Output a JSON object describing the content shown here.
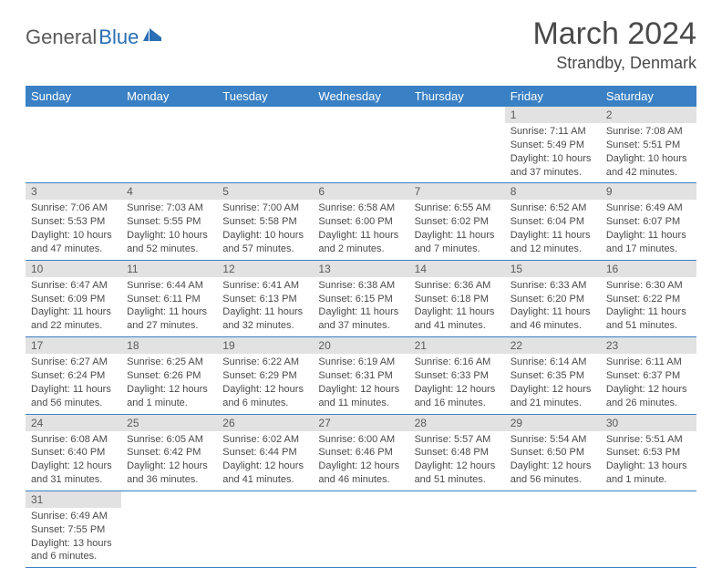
{
  "logo": {
    "part1": "General",
    "part2": "Blue"
  },
  "title": "March 2024",
  "location": "Strandby, Denmark",
  "colors": {
    "header_bg": "#3a80c4",
    "header_text": "#ffffff",
    "daynum_bg": "#e2e2e2",
    "daynum_text": "#5a5a5a",
    "border": "#3a80c4",
    "body_text": "#4a4a4a",
    "logo_gray": "#5a5a5a",
    "logo_blue": "#2a6fb3"
  },
  "weekdays": [
    "Sunday",
    "Monday",
    "Tuesday",
    "Wednesday",
    "Thursday",
    "Friday",
    "Saturday"
  ],
  "weeks": [
    [
      null,
      null,
      null,
      null,
      null,
      {
        "n": "1",
        "sr": "Sunrise: 7:11 AM",
        "ss": "Sunset: 5:49 PM",
        "d1": "Daylight: 10 hours",
        "d2": "and 37 minutes."
      },
      {
        "n": "2",
        "sr": "Sunrise: 7:08 AM",
        "ss": "Sunset: 5:51 PM",
        "d1": "Daylight: 10 hours",
        "d2": "and 42 minutes."
      }
    ],
    [
      {
        "n": "3",
        "sr": "Sunrise: 7:06 AM",
        "ss": "Sunset: 5:53 PM",
        "d1": "Daylight: 10 hours",
        "d2": "and 47 minutes."
      },
      {
        "n": "4",
        "sr": "Sunrise: 7:03 AM",
        "ss": "Sunset: 5:55 PM",
        "d1": "Daylight: 10 hours",
        "d2": "and 52 minutes."
      },
      {
        "n": "5",
        "sr": "Sunrise: 7:00 AM",
        "ss": "Sunset: 5:58 PM",
        "d1": "Daylight: 10 hours",
        "d2": "and 57 minutes."
      },
      {
        "n": "6",
        "sr": "Sunrise: 6:58 AM",
        "ss": "Sunset: 6:00 PM",
        "d1": "Daylight: 11 hours",
        "d2": "and 2 minutes."
      },
      {
        "n": "7",
        "sr": "Sunrise: 6:55 AM",
        "ss": "Sunset: 6:02 PM",
        "d1": "Daylight: 11 hours",
        "d2": "and 7 minutes."
      },
      {
        "n": "8",
        "sr": "Sunrise: 6:52 AM",
        "ss": "Sunset: 6:04 PM",
        "d1": "Daylight: 11 hours",
        "d2": "and 12 minutes."
      },
      {
        "n": "9",
        "sr": "Sunrise: 6:49 AM",
        "ss": "Sunset: 6:07 PM",
        "d1": "Daylight: 11 hours",
        "d2": "and 17 minutes."
      }
    ],
    [
      {
        "n": "10",
        "sr": "Sunrise: 6:47 AM",
        "ss": "Sunset: 6:09 PM",
        "d1": "Daylight: 11 hours",
        "d2": "and 22 minutes."
      },
      {
        "n": "11",
        "sr": "Sunrise: 6:44 AM",
        "ss": "Sunset: 6:11 PM",
        "d1": "Daylight: 11 hours",
        "d2": "and 27 minutes."
      },
      {
        "n": "12",
        "sr": "Sunrise: 6:41 AM",
        "ss": "Sunset: 6:13 PM",
        "d1": "Daylight: 11 hours",
        "d2": "and 32 minutes."
      },
      {
        "n": "13",
        "sr": "Sunrise: 6:38 AM",
        "ss": "Sunset: 6:15 PM",
        "d1": "Daylight: 11 hours",
        "d2": "and 37 minutes."
      },
      {
        "n": "14",
        "sr": "Sunrise: 6:36 AM",
        "ss": "Sunset: 6:18 PM",
        "d1": "Daylight: 11 hours",
        "d2": "and 41 minutes."
      },
      {
        "n": "15",
        "sr": "Sunrise: 6:33 AM",
        "ss": "Sunset: 6:20 PM",
        "d1": "Daylight: 11 hours",
        "d2": "and 46 minutes."
      },
      {
        "n": "16",
        "sr": "Sunrise: 6:30 AM",
        "ss": "Sunset: 6:22 PM",
        "d1": "Daylight: 11 hours",
        "d2": "and 51 minutes."
      }
    ],
    [
      {
        "n": "17",
        "sr": "Sunrise: 6:27 AM",
        "ss": "Sunset: 6:24 PM",
        "d1": "Daylight: 11 hours",
        "d2": "and 56 minutes."
      },
      {
        "n": "18",
        "sr": "Sunrise: 6:25 AM",
        "ss": "Sunset: 6:26 PM",
        "d1": "Daylight: 12 hours",
        "d2": "and 1 minute."
      },
      {
        "n": "19",
        "sr": "Sunrise: 6:22 AM",
        "ss": "Sunset: 6:29 PM",
        "d1": "Daylight: 12 hours",
        "d2": "and 6 minutes."
      },
      {
        "n": "20",
        "sr": "Sunrise: 6:19 AM",
        "ss": "Sunset: 6:31 PM",
        "d1": "Daylight: 12 hours",
        "d2": "and 11 minutes."
      },
      {
        "n": "21",
        "sr": "Sunrise: 6:16 AM",
        "ss": "Sunset: 6:33 PM",
        "d1": "Daylight: 12 hours",
        "d2": "and 16 minutes."
      },
      {
        "n": "22",
        "sr": "Sunrise: 6:14 AM",
        "ss": "Sunset: 6:35 PM",
        "d1": "Daylight: 12 hours",
        "d2": "and 21 minutes."
      },
      {
        "n": "23",
        "sr": "Sunrise: 6:11 AM",
        "ss": "Sunset: 6:37 PM",
        "d1": "Daylight: 12 hours",
        "d2": "and 26 minutes."
      }
    ],
    [
      {
        "n": "24",
        "sr": "Sunrise: 6:08 AM",
        "ss": "Sunset: 6:40 PM",
        "d1": "Daylight: 12 hours",
        "d2": "and 31 minutes."
      },
      {
        "n": "25",
        "sr": "Sunrise: 6:05 AM",
        "ss": "Sunset: 6:42 PM",
        "d1": "Daylight: 12 hours",
        "d2": "and 36 minutes."
      },
      {
        "n": "26",
        "sr": "Sunrise: 6:02 AM",
        "ss": "Sunset: 6:44 PM",
        "d1": "Daylight: 12 hours",
        "d2": "and 41 minutes."
      },
      {
        "n": "27",
        "sr": "Sunrise: 6:00 AM",
        "ss": "Sunset: 6:46 PM",
        "d1": "Daylight: 12 hours",
        "d2": "and 46 minutes."
      },
      {
        "n": "28",
        "sr": "Sunrise: 5:57 AM",
        "ss": "Sunset: 6:48 PM",
        "d1": "Daylight: 12 hours",
        "d2": "and 51 minutes."
      },
      {
        "n": "29",
        "sr": "Sunrise: 5:54 AM",
        "ss": "Sunset: 6:50 PM",
        "d1": "Daylight: 12 hours",
        "d2": "and 56 minutes."
      },
      {
        "n": "30",
        "sr": "Sunrise: 5:51 AM",
        "ss": "Sunset: 6:53 PM",
        "d1": "Daylight: 13 hours",
        "d2": "and 1 minute."
      }
    ],
    [
      {
        "n": "31",
        "sr": "Sunrise: 6:49 AM",
        "ss": "Sunset: 7:55 PM",
        "d1": "Daylight: 13 hours",
        "d2": "and 6 minutes."
      },
      null,
      null,
      null,
      null,
      null,
      null
    ]
  ]
}
